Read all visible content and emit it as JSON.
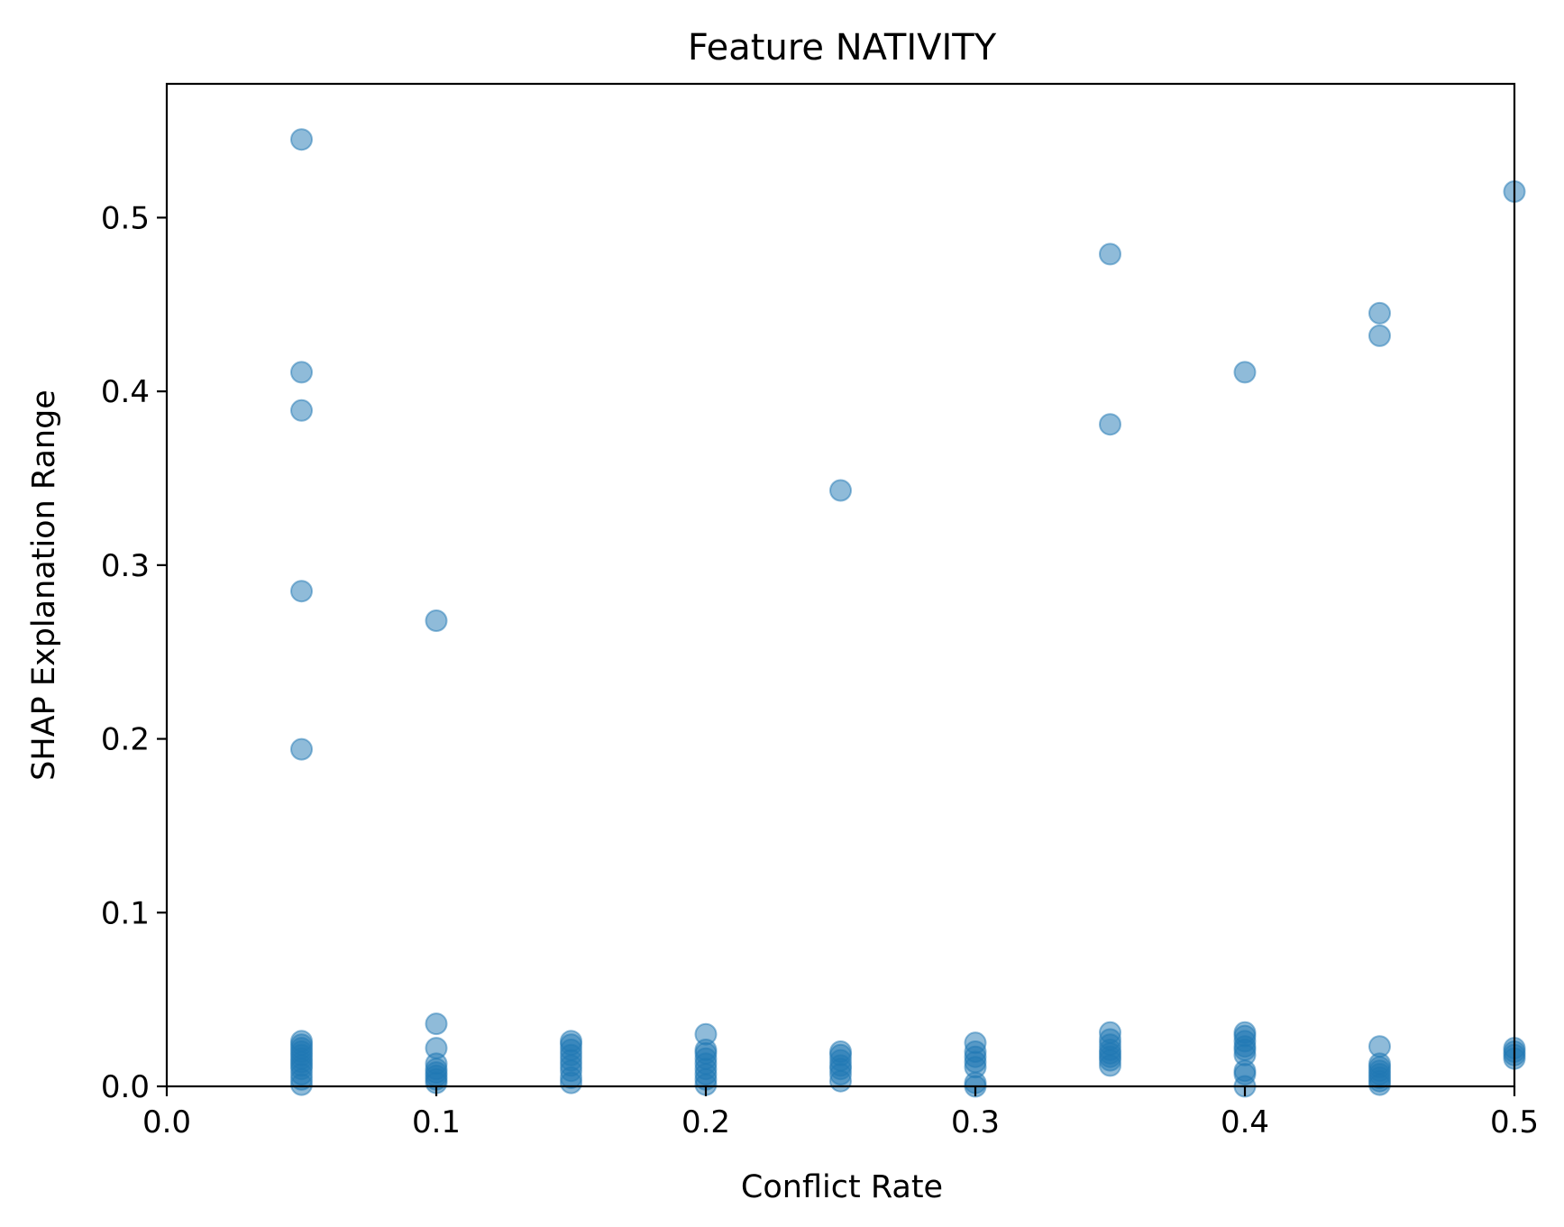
{
  "chart_data": {
    "type": "scatter",
    "title": "Feature NATIVITY",
    "xlabel": "Conflict Rate",
    "ylabel": "SHAP Explanation Range",
    "xlim": [
      0.0,
      0.5
    ],
    "ylim": [
      0.0,
      0.577
    ],
    "xticks": [
      "0.0",
      "0.1",
      "0.2",
      "0.3",
      "0.4",
      "0.5"
    ],
    "yticks": [
      "0.0",
      "0.1",
      "0.2",
      "0.3",
      "0.4",
      "0.5"
    ],
    "grid": false,
    "color": "#1f77b4",
    "series": [
      {
        "points": [
          [
            0.05,
            0.545
          ],
          [
            0.05,
            0.411
          ],
          [
            0.05,
            0.389
          ],
          [
            0.05,
            0.285
          ],
          [
            0.05,
            0.194
          ],
          [
            0.05,
            0.026
          ],
          [
            0.05,
            0.024
          ],
          [
            0.05,
            0.022
          ],
          [
            0.05,
            0.02
          ],
          [
            0.05,
            0.018
          ],
          [
            0.05,
            0.016
          ],
          [
            0.05,
            0.014
          ],
          [
            0.05,
            0.012
          ],
          [
            0.05,
            0.01
          ],
          [
            0.05,
            0.007
          ],
          [
            0.05,
            0.004
          ],
          [
            0.05,
            0.001
          ],
          [
            0.1,
            0.268
          ],
          [
            0.1,
            0.036
          ],
          [
            0.1,
            0.022
          ],
          [
            0.1,
            0.013
          ],
          [
            0.1,
            0.01
          ],
          [
            0.1,
            0.008
          ],
          [
            0.1,
            0.006
          ],
          [
            0.1,
            0.004
          ],
          [
            0.1,
            0.002
          ],
          [
            0.15,
            0.026
          ],
          [
            0.15,
            0.024
          ],
          [
            0.15,
            0.021
          ],
          [
            0.15,
            0.018
          ],
          [
            0.15,
            0.015
          ],
          [
            0.15,
            0.012
          ],
          [
            0.15,
            0.009
          ],
          [
            0.15,
            0.005
          ],
          [
            0.15,
            0.002
          ],
          [
            0.2,
            0.03
          ],
          [
            0.2,
            0.021
          ],
          [
            0.2,
            0.019
          ],
          [
            0.2,
            0.016
          ],
          [
            0.2,
            0.013
          ],
          [
            0.2,
            0.01
          ],
          [
            0.2,
            0.007
          ],
          [
            0.2,
            0.004
          ],
          [
            0.2,
            0.001
          ],
          [
            0.25,
            0.343
          ],
          [
            0.25,
            0.02
          ],
          [
            0.25,
            0.018
          ],
          [
            0.25,
            0.015
          ],
          [
            0.25,
            0.012
          ],
          [
            0.25,
            0.01
          ],
          [
            0.25,
            0.007
          ],
          [
            0.25,
            0.003
          ],
          [
            0.3,
            0.025
          ],
          [
            0.3,
            0.02
          ],
          [
            0.3,
            0.017
          ],
          [
            0.3,
            0.014
          ],
          [
            0.3,
            0.011
          ],
          [
            0.3,
            0.002
          ],
          [
            0.3,
            0.0
          ],
          [
            0.35,
            0.479
          ],
          [
            0.35,
            0.381
          ],
          [
            0.35,
            0.031
          ],
          [
            0.35,
            0.027
          ],
          [
            0.35,
            0.024
          ],
          [
            0.35,
            0.021
          ],
          [
            0.35,
            0.019
          ],
          [
            0.35,
            0.017
          ],
          [
            0.35,
            0.015
          ],
          [
            0.35,
            0.012
          ],
          [
            0.4,
            0.411
          ],
          [
            0.4,
            0.031
          ],
          [
            0.4,
            0.029
          ],
          [
            0.4,
            0.026
          ],
          [
            0.4,
            0.023
          ],
          [
            0.4,
            0.021
          ],
          [
            0.4,
            0.018
          ],
          [
            0.4,
            0.009
          ],
          [
            0.4,
            0.007
          ],
          [
            0.4,
            0.0
          ],
          [
            0.45,
            0.445
          ],
          [
            0.45,
            0.432
          ],
          [
            0.45,
            0.023
          ],
          [
            0.45,
            0.013
          ],
          [
            0.45,
            0.011
          ],
          [
            0.45,
            0.009
          ],
          [
            0.45,
            0.007
          ],
          [
            0.45,
            0.005
          ],
          [
            0.45,
            0.003
          ],
          [
            0.45,
            0.001
          ],
          [
            0.5,
            0.515
          ],
          [
            0.5,
            0.022
          ],
          [
            0.5,
            0.02
          ],
          [
            0.5,
            0.018
          ],
          [
            0.5,
            0.016
          ]
        ]
      }
    ]
  }
}
